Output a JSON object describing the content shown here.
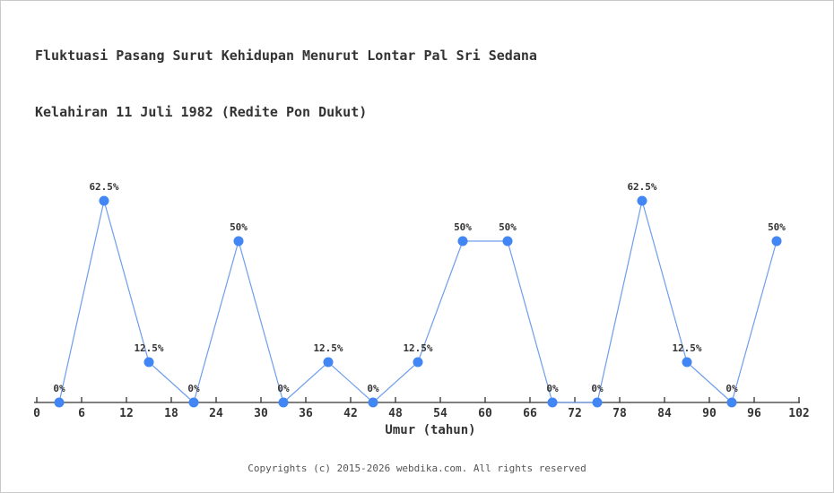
{
  "page": {
    "background": "#ffffff",
    "border_color": "#c9c9c9"
  },
  "chart_data": {
    "type": "line",
    "title": "Fluktuasi Pasang Surut Kehidupan Menurut Lontar Pal Sri Sedana Kelahiran 11 Juli 1982 (Redite Pon Dukut)",
    "title_line1": "Fluktuasi Pasang Surut Kehidupan Menurut Lontar Pal Sri Sedana",
    "title_line2": "Kelahiran 11 Juli 1982 (Redite Pon Dukut)",
    "xlabel": "Umur (tahun)",
    "ylabel": "",
    "x": [
      3,
      9,
      15,
      21,
      27,
      33,
      39,
      45,
      51,
      57,
      63,
      69,
      75,
      81,
      87,
      93,
      99
    ],
    "values": [
      0,
      62.5,
      12.5,
      0,
      50,
      0,
      12.5,
      0,
      12.5,
      50,
      50,
      0,
      0,
      62.5,
      12.5,
      0,
      50
    ],
    "point_labels": [
      "0%",
      "62.5%",
      "12.5%",
      "0%",
      "50%",
      "0%",
      "12.5%",
      "0%",
      "12.5%",
      "50%",
      "50%",
      "0%",
      "0%",
      "62.5%",
      "12.5%",
      "0%",
      "50%"
    ],
    "x_ticks": [
      0,
      6,
      12,
      18,
      24,
      30,
      36,
      42,
      48,
      54,
      60,
      66,
      72,
      78,
      84,
      90,
      96,
      102
    ],
    "xlim": [
      0,
      102
    ],
    "ylim": [
      0,
      100
    ],
    "grid": false,
    "legend_position": "none",
    "colors": {
      "line": "#6d9eeb",
      "marker": "#4285f4",
      "axis": "#333333",
      "text": "#333333"
    }
  },
  "footer": {
    "copyright": "Copyrights (c) 2015-2026 webdika.com. All rights reserved"
  }
}
